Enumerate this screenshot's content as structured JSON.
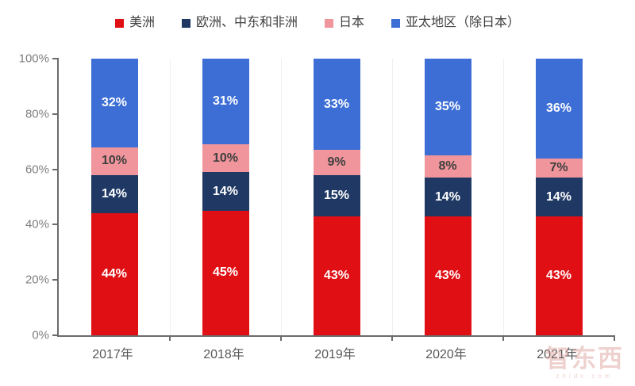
{
  "watermark": {
    "logo_text": "智东西",
    "domain_text": "zhidx.com"
  },
  "chart_data": {
    "type": "bar",
    "stacked": true,
    "percent_stacked": true,
    "title": "",
    "xlabel": "",
    "ylabel": "",
    "categories": [
      "2017年",
      "2018年",
      "2019年",
      "2020年",
      "2021年"
    ],
    "series": [
      {
        "name": "美洲",
        "color": "#df0f14",
        "label_color": "#ffffff",
        "values": [
          44,
          45,
          43,
          43,
          43
        ]
      },
      {
        "name": "欧洲、中东和非洲",
        "color": "#1f3864",
        "label_color": "#ffffff",
        "values": [
          14,
          14,
          15,
          14,
          14
        ]
      },
      {
        "name": "日本",
        "color": "#f0959b",
        "label_color": "#3f3f3f",
        "values": [
          10,
          10,
          9,
          8,
          7
        ]
      },
      {
        "name": "亚太地区（除日本）",
        "color": "#3c6ed5",
        "label_color": "#ffffff",
        "values": [
          32,
          31,
          33,
          35,
          36
        ]
      }
    ],
    "value_suffix": "%",
    "yticks": [
      "0%",
      "20%",
      "40%",
      "60%",
      "80%",
      "100%"
    ],
    "ylim": [
      0,
      100
    ],
    "legend_position": "top",
    "grid": "faint vertical lines at category boundaries",
    "axis_color": "#6b6b6b",
    "ytick_label_color": "#7f7f7f",
    "xtick_label_color": "#595959",
    "legend_text_color": "#404040"
  }
}
